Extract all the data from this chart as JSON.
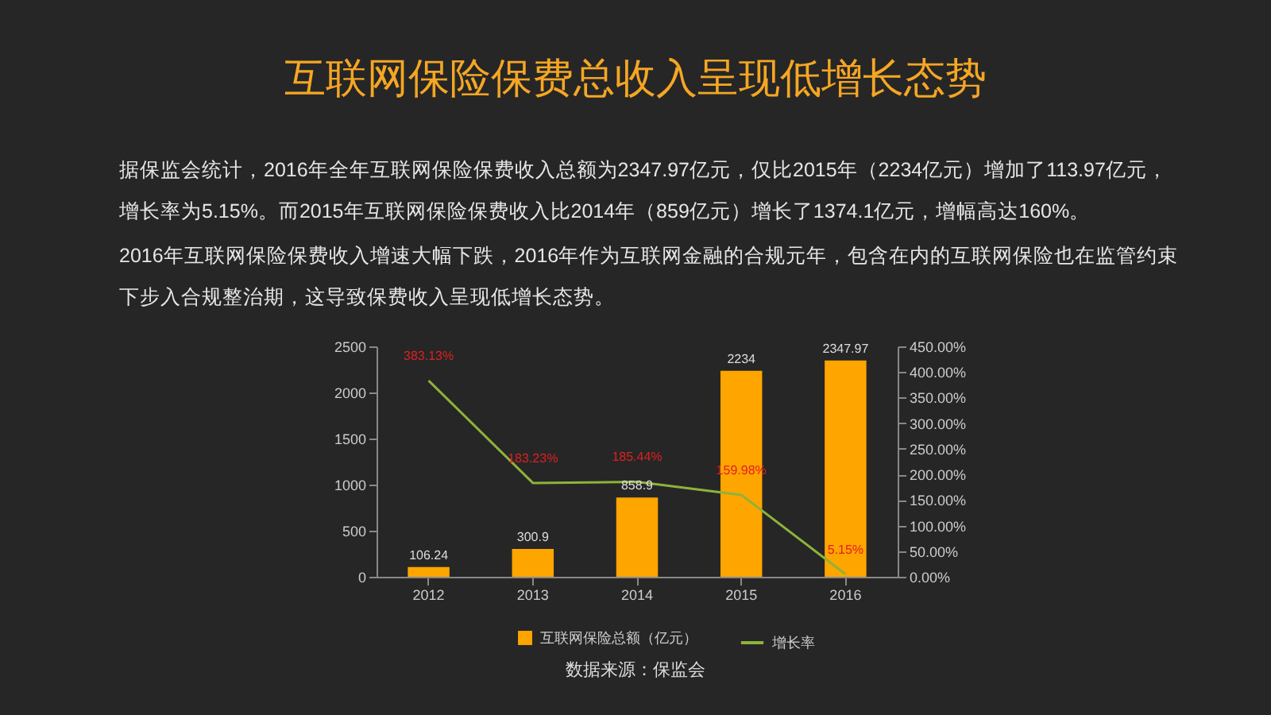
{
  "chart_data": {
    "type": "bar",
    "title": "互联网保险保费总收入呈现低增长态势",
    "annotations": [
      "据保监会统计，2016年全年互联网保险保费收入总额为2347.97亿元，仅比2015年（2234亿元）增加了113.97亿元，增长率为5.15%。而2015年互联网保险保费收入比2014年（859亿元）增长了1374.1亿元，增幅高达160%。",
      "2016年互联网保险保费收入增速大幅下跌，2016年作为互联网金融的合规元年，包含在内的互联网保险也在监管约束下步入合规整治期，这导致保费收入呈现低增长态势。",
      "数据来源：保监会"
    ],
    "categories": [
      "2012",
      "2013",
      "2014",
      "2015",
      "2016"
    ],
    "series": [
      {
        "name": "互联网保险总额（亿元）",
        "color": "#ffa500",
        "values": [
          106.24,
          300.9,
          858.9,
          2234,
          2347.97
        ],
        "value_labels": [
          "106.24",
          "300.9",
          "858.9",
          "2234",
          "2347.97"
        ]
      },
      {
        "name": "增长率",
        "type": "line",
        "axis": "y2",
        "color": "#8db33a",
        "values": [
          383.13,
          183.23,
          185.44,
          159.98,
          5.15
        ],
        "value_labels": [
          "383.13%",
          "183.23%",
          "185.44%",
          "159.98%",
          "5.15%"
        ]
      }
    ],
    "ylim": [
      0,
      2500
    ],
    "yticks": [
      0,
      500,
      1000,
      1500,
      2000,
      2500
    ],
    "y2lim": [
      0,
      450
    ],
    "y2ticks": [
      {
        "value": 0,
        "label": "0.00%"
      },
      {
        "value": 50,
        "label": "50.00%"
      },
      {
        "value": 100,
        "label": "100.00%"
      },
      {
        "value": 150,
        "label": "150.00%"
      },
      {
        "value": 200,
        "label": "200.00%"
      },
      {
        "value": 250,
        "label": "250.00%"
      },
      {
        "value": 300,
        "label": "300.00%"
      },
      {
        "value": 350,
        "label": "350.00%"
      },
      {
        "value": 400,
        "label": "400.00%"
      },
      {
        "value": 450,
        "label": "450.00%"
      }
    ],
    "legend": "bottom",
    "grid": false,
    "marker": "none",
    "line_style": "solid"
  }
}
